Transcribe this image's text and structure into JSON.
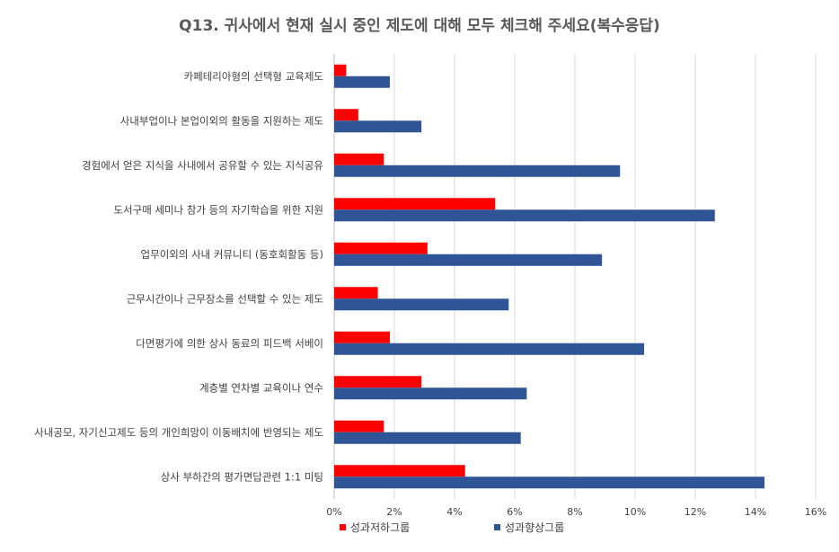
{
  "chart_data": {
    "type": "bar",
    "orientation": "horizontal",
    "title": "Q13. 귀사에서 현재 실시 중인 제도에 대해 모두 체크해 주세요(복수응답)",
    "categories": [
      "카페테리아형의 선택형 교육제도",
      "사내부업이나 본업이외의 활동을 지원하는 제도",
      "경험에서 얻은 지식을 사내에서 공유할 수 있는 지식공유",
      "도서구매 세미나 참가 등의 자기학습을 위한 지원",
      "업무이외의 사내 커뮤니티 (동호회활동 등)",
      "근무시간이나 근무장소를 선택할 수 있는 제도",
      "다면평가에 의한 상사 동료의 피드백 서베이",
      "계층별 연차별 교육이나 연수",
      "사내공모, 자기신고제도 등의 개인희망이 이동배치에 반영되는 제도",
      "상사 부하간의 평가면답관련 1:1 미팅"
    ],
    "series": [
      {
        "name": "성과저하그룹",
        "color": "#ff0000",
        "values": [
          0.4,
          0.8,
          1.65,
          5.35,
          3.1,
          1.45,
          1.85,
          2.9,
          1.65,
          4.35
        ]
      },
      {
        "name": "성과향상그룹",
        "color": "#2f5597",
        "values": [
          1.85,
          2.9,
          9.5,
          12.65,
          8.9,
          5.8,
          10.3,
          6.4,
          6.2,
          14.3
        ]
      }
    ],
    "x_ticks": [
      "0%",
      "2%",
      "4%",
      "6%",
      "8%",
      "10%",
      "12%",
      "14%",
      "16%"
    ],
    "xlim": [
      0,
      16
    ],
    "grid": "vertical",
    "legend_position": "bottom"
  }
}
